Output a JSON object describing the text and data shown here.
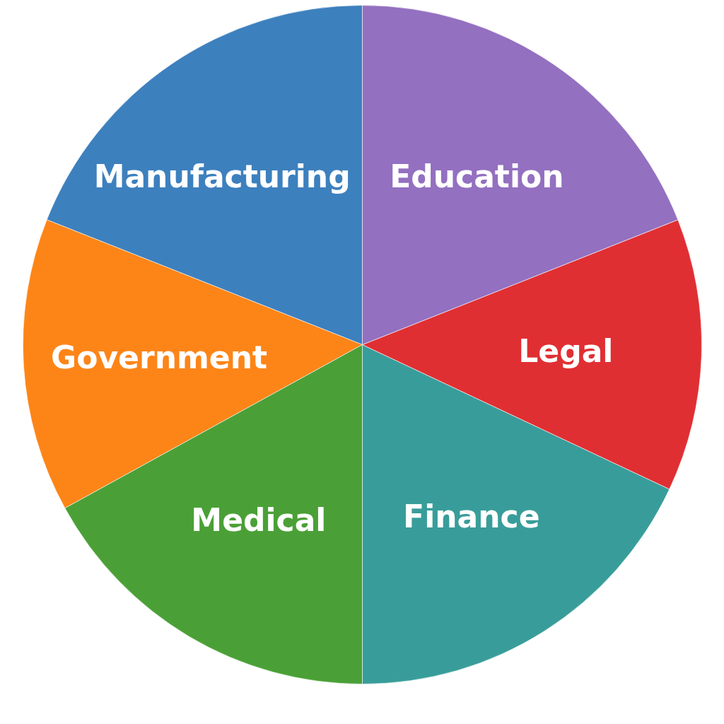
{
  "chart_data": {
    "type": "pie",
    "categories": [
      "Manufacturing",
      "Government",
      "Medical",
      "Finance",
      "Legal",
      "Education"
    ],
    "values": [
      19,
      14,
      17,
      18,
      13,
      19
    ],
    "colors": [
      "#3d80be",
      "#fd8518",
      "#4aa036",
      "#389d9a",
      "#e02f33",
      "#9370c0"
    ]
  }
}
